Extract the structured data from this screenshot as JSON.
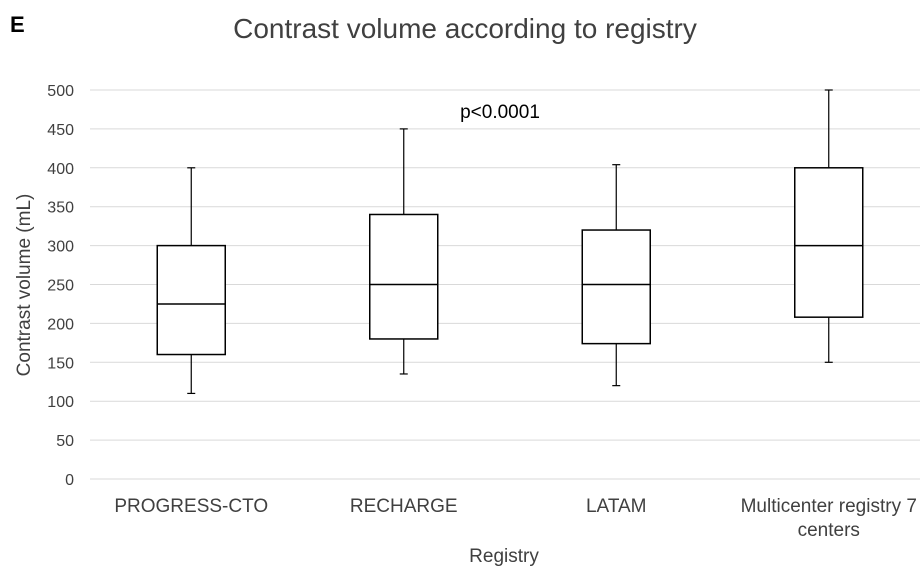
{
  "panel_label": "E",
  "chart_data": {
    "type": "box",
    "title": "Contrast volume according to registry",
    "xlabel": "Registry",
    "ylabel": "Contrast volume (mL)",
    "ylim": [
      0,
      500
    ],
    "yticks": [
      0,
      50,
      100,
      150,
      200,
      250,
      300,
      350,
      400,
      450,
      500
    ],
    "grid": true,
    "annotation": "p<0.0001",
    "categories": [
      [
        "PROGRESS-CTO"
      ],
      [
        "RECHARGE"
      ],
      [
        "LATAM"
      ],
      [
        "Multicenter registry 7",
        "centers"
      ]
    ],
    "boxes": [
      {
        "min": 110,
        "q1": 160,
        "median": 225,
        "q3": 300,
        "max": 400
      },
      {
        "min": 135,
        "q1": 180,
        "median": 250,
        "q3": 340,
        "max": 450
      },
      {
        "min": 120,
        "q1": 174,
        "median": 250,
        "q3": 320,
        "max": 404
      },
      {
        "min": 150,
        "q1": 208,
        "median": 300,
        "q3": 400,
        "max": 500
      }
    ]
  }
}
